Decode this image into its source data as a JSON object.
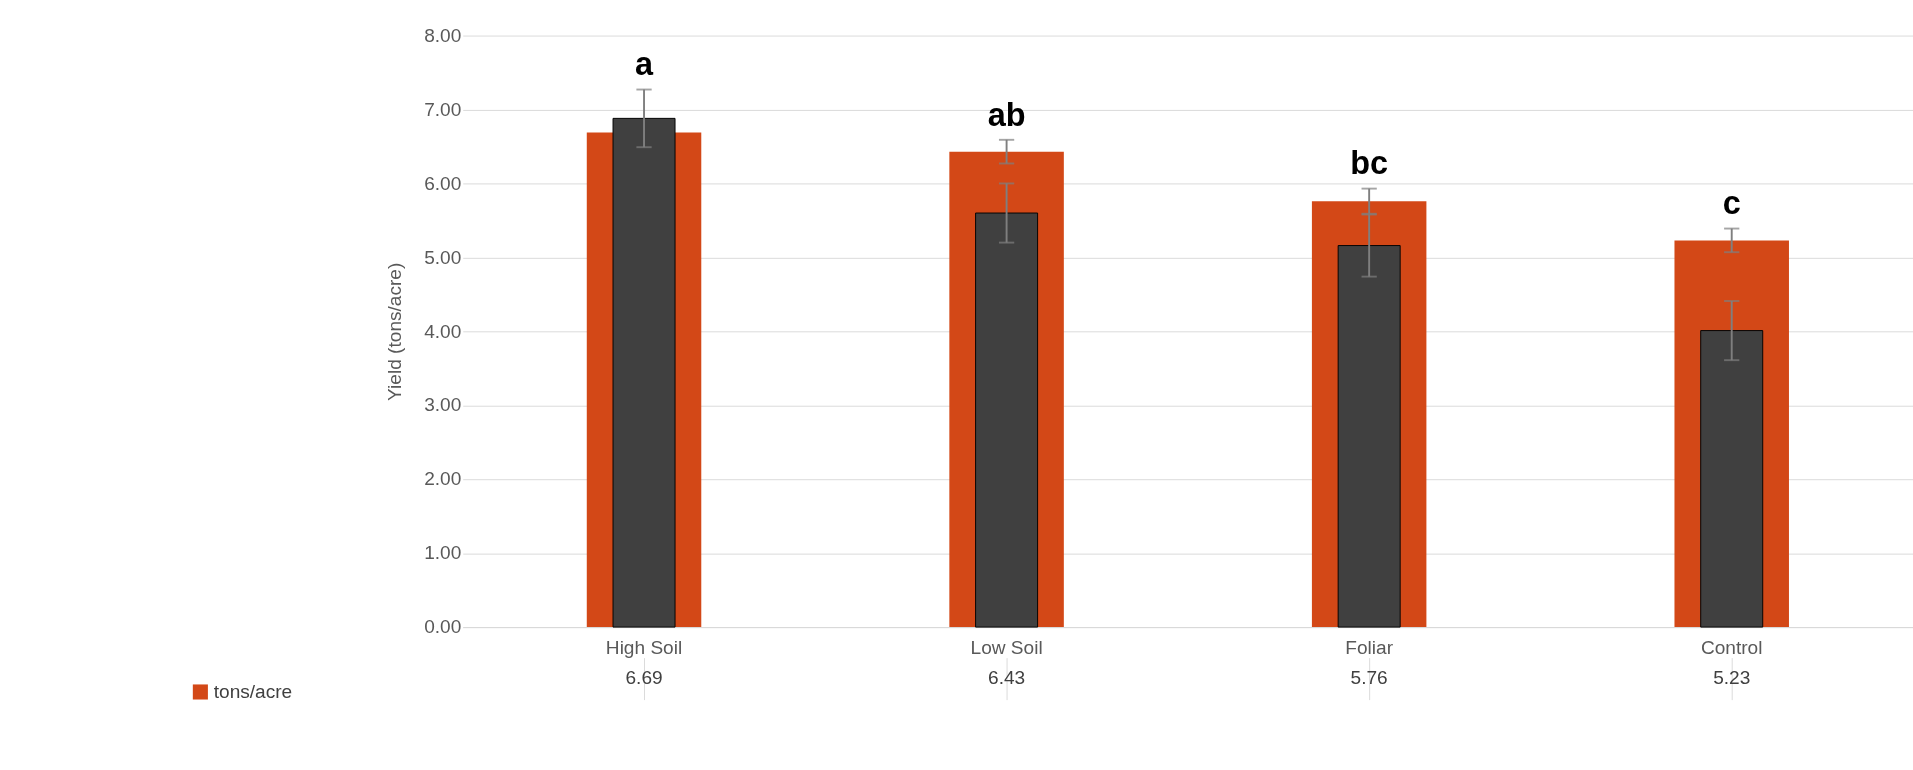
{
  "chart_data": {
    "type": "bar",
    "ylabel": "Yield (tons/acre)",
    "categories": [
      "High Soil",
      "Low Soil",
      "Foliar",
      "Control"
    ],
    "series": [
      {
        "name": "tons/acre",
        "color": "#d34817",
        "values": [
          6.69,
          6.43,
          5.76,
          5.23
        ],
        "errors": [
          null,
          0.16,
          0.17,
          0.16
        ],
        "value_labels": [
          "6.69",
          "6.43",
          "5.76",
          "5.23"
        ]
      },
      {
        "color": "#404040",
        "values": [
          6.88,
          5.6,
          5.16,
          4.01
        ],
        "errors": [
          0.39,
          0.4,
          0.42,
          0.4
        ]
      }
    ],
    "ylim": [
      0,
      8
    ],
    "yticks": [
      {
        "value": 0,
        "label": "0.00"
      },
      {
        "value": 1,
        "label": "1.00"
      },
      {
        "value": 2,
        "label": "2.00"
      },
      {
        "value": 3,
        "label": "3.00"
      },
      {
        "value": 4,
        "label": "4.00"
      },
      {
        "value": 5,
        "label": "5.00"
      },
      {
        "value": 6,
        "label": "6.00"
      },
      {
        "value": 7,
        "label": "7.00"
      },
      {
        "value": 8,
        "label": "8.00"
      }
    ],
    "grid": "y",
    "legend": "bottom",
    "annotations": [
      "a",
      "ab",
      "bc",
      "c"
    ]
  }
}
